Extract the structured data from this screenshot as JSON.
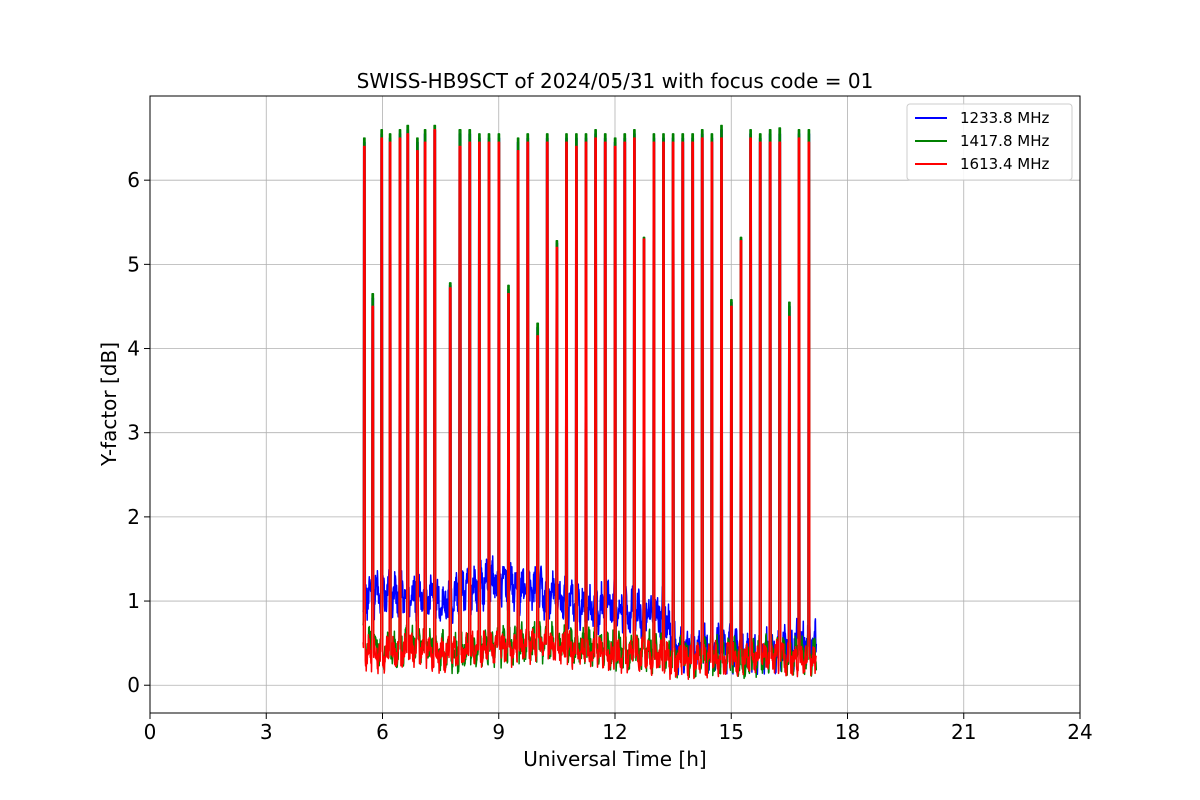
{
  "chart_data": {
    "type": "line",
    "title": "SWISS-HB9SCT of 2024/05/31 with focus code = 01",
    "xlabel": "Universal Time [h]",
    "ylabel": "Y-factor [dB]",
    "xlim": [
      0,
      24
    ],
    "ylim": [
      -0.33,
      7.0
    ],
    "xticks": [
      0,
      3,
      6,
      9,
      12,
      15,
      18,
      21,
      24
    ],
    "yticks": [
      0,
      1,
      2,
      3,
      4,
      5,
      6
    ],
    "grid": true,
    "legend_position": "top-right",
    "data_start": 5.5,
    "data_end": 17.2,
    "peak_times": [
      5.53,
      5.75,
      5.98,
      6.2,
      6.45,
      6.65,
      6.9,
      7.1,
      7.35,
      7.75,
      8.0,
      8.25,
      8.5,
      8.75,
      9.0,
      9.25,
      9.5,
      9.75,
      10.0,
      10.25,
      10.5,
      10.75,
      11.0,
      11.25,
      11.5,
      11.75,
      12.0,
      12.25,
      12.5,
      12.75,
      13.0,
      13.25,
      13.5,
      13.75,
      14.0,
      14.25,
      14.5,
      14.75,
      15.0,
      15.25,
      15.5,
      15.75,
      16.0,
      16.25,
      16.5,
      16.75,
      17.0
    ],
    "series": [
      {
        "name": "1233.8 MHz",
        "color": "#0000ff",
        "peaks": [
          6.45,
          4.6,
          6.55,
          6.5,
          6.55,
          6.6,
          6.45,
          6.55,
          6.6,
          4.75,
          6.55,
          6.55,
          6.5,
          6.5,
          6.5,
          4.7,
          6.45,
          6.5,
          4.25,
          6.5,
          5.25,
          6.5,
          6.5,
          6.5,
          6.55,
          6.5,
          6.45,
          6.5,
          6.55,
          5.3,
          6.5,
          6.5,
          6.5,
          6.5,
          6.5,
          6.55,
          6.5,
          6.6,
          4.55,
          5.3,
          6.55,
          6.5,
          6.55,
          6.55,
          4.5,
          6.55,
          6.55
        ],
        "baseline": [
          [
            5.5,
            1.05
          ],
          [
            6.0,
            1.1
          ],
          [
            6.5,
            1.05
          ],
          [
            7.0,
            1.1
          ],
          [
            7.5,
            0.95
          ],
          [
            8.0,
            1.1
          ],
          [
            8.5,
            1.2
          ],
          [
            9.0,
            1.25
          ],
          [
            9.5,
            1.15
          ],
          [
            10.0,
            1.1
          ],
          [
            10.5,
            1.05
          ],
          [
            11.0,
            0.95
          ],
          [
            11.5,
            0.9
          ],
          [
            12.0,
            0.95
          ],
          [
            12.5,
            0.85
          ],
          [
            13.0,
            0.85
          ],
          [
            13.3,
            0.9
          ],
          [
            13.5,
            0.45
          ],
          [
            14.0,
            0.45
          ],
          [
            14.5,
            0.45
          ],
          [
            15.0,
            0.45
          ],
          [
            15.5,
            0.35
          ],
          [
            16.0,
            0.4
          ],
          [
            16.5,
            0.45
          ],
          [
            17.2,
            0.5
          ]
        ],
        "noise": 0.22
      },
      {
        "name": "1417.8 MHz",
        "color": "#008000",
        "peaks": [
          6.5,
          4.65,
          6.6,
          6.55,
          6.6,
          6.65,
          6.5,
          6.6,
          6.65,
          4.78,
          6.6,
          6.6,
          6.55,
          6.55,
          6.55,
          4.75,
          6.5,
          6.55,
          4.3,
          6.55,
          5.28,
          6.55,
          6.55,
          6.55,
          6.6,
          6.55,
          6.5,
          6.55,
          6.6,
          5.32,
          6.55,
          6.55,
          6.55,
          6.55,
          6.55,
          6.6,
          6.55,
          6.65,
          4.58,
          5.32,
          6.6,
          6.55,
          6.6,
          6.62,
          4.55,
          6.6,
          6.6
        ],
        "baseline": [
          [
            5.5,
            0.5
          ],
          [
            6.0,
            0.4
          ],
          [
            6.5,
            0.45
          ],
          [
            7.0,
            0.5
          ],
          [
            7.5,
            0.4
          ],
          [
            8.0,
            0.4
          ],
          [
            8.5,
            0.45
          ],
          [
            9.0,
            0.45
          ],
          [
            9.5,
            0.5
          ],
          [
            10.0,
            0.5
          ],
          [
            10.5,
            0.5
          ],
          [
            11.0,
            0.45
          ],
          [
            11.5,
            0.45
          ],
          [
            12.0,
            0.4
          ],
          [
            12.5,
            0.4
          ],
          [
            13.0,
            0.4
          ],
          [
            13.5,
            0.35
          ],
          [
            14.0,
            0.35
          ],
          [
            14.5,
            0.35
          ],
          [
            15.0,
            0.35
          ],
          [
            15.5,
            0.3
          ],
          [
            16.0,
            0.4
          ],
          [
            16.5,
            0.35
          ],
          [
            17.2,
            0.35
          ]
        ],
        "noise": 0.18
      },
      {
        "name": "1613.4 MHz",
        "color": "#ff0000",
        "peaks": [
          6.4,
          4.5,
          6.5,
          6.45,
          6.5,
          6.55,
          6.35,
          6.45,
          6.6,
          4.72,
          6.4,
          6.45,
          6.45,
          6.45,
          6.45,
          4.65,
          6.35,
          6.45,
          4.15,
          6.45,
          5.2,
          6.45,
          6.4,
          6.45,
          6.5,
          6.45,
          6.4,
          6.45,
          6.5,
          5.3,
          6.45,
          6.45,
          6.45,
          6.45,
          6.45,
          6.5,
          6.45,
          6.5,
          4.5,
          5.28,
          6.5,
          6.45,
          6.45,
          6.45,
          4.38,
          6.5,
          6.45
        ],
        "baseline": [
          [
            5.5,
            0.4
          ],
          [
            6.0,
            0.35
          ],
          [
            6.5,
            0.4
          ],
          [
            7.0,
            0.45
          ],
          [
            7.5,
            0.35
          ],
          [
            8.0,
            0.4
          ],
          [
            8.5,
            0.45
          ],
          [
            9.0,
            0.45
          ],
          [
            9.5,
            0.45
          ],
          [
            10.0,
            0.5
          ],
          [
            10.5,
            0.45
          ],
          [
            11.0,
            0.4
          ],
          [
            11.5,
            0.4
          ],
          [
            12.0,
            0.35
          ],
          [
            12.5,
            0.35
          ],
          [
            13.0,
            0.35
          ],
          [
            13.5,
            0.3
          ],
          [
            14.0,
            0.3
          ],
          [
            14.5,
            0.3
          ],
          [
            15.0,
            0.3
          ],
          [
            15.5,
            0.35
          ],
          [
            16.0,
            0.35
          ],
          [
            16.5,
            0.3
          ],
          [
            17.2,
            0.3
          ]
        ],
        "noise": 0.16
      }
    ]
  }
}
